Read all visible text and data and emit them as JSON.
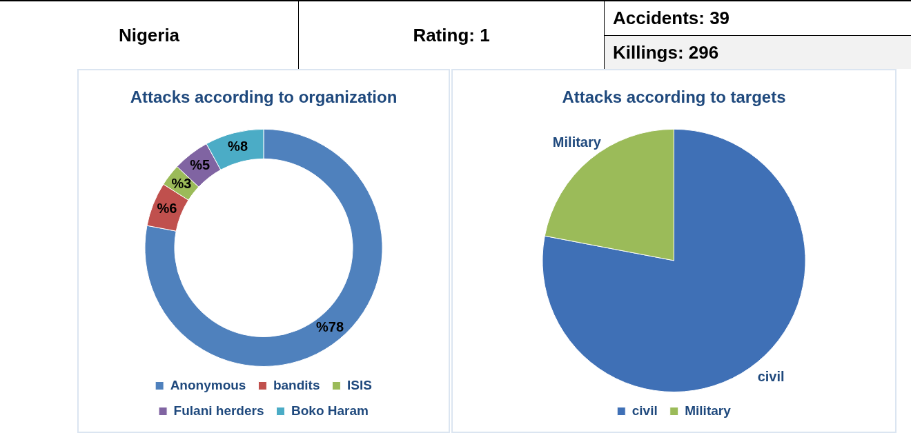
{
  "chart_data": [
    {
      "type": "other",
      "annotations": [
        "Nigeria",
        "Rating: 1",
        "Accidents: 39",
        "Killings: 296"
      ]
    },
    {
      "type": "donut",
      "title": "Attacks according to organization",
      "categories": [
        "Anonymous",
        "bandits",
        "ISIS",
        "Fulani herders",
        "Boko Haram"
      ],
      "values": [
        78,
        6,
        3,
        5,
        8
      ],
      "colors": [
        "#4f81bd",
        "#c0504d",
        "#9bbb59",
        "#8064a2",
        "#4bacc6"
      ],
      "value_labels": [
        "%78",
        "%6",
        "%3",
        "%5",
        "%8"
      ],
      "legend": "bottom"
    },
    {
      "type": "pie",
      "title": "Attacks according to targets",
      "categories": [
        "civil",
        "Military"
      ],
      "values": [
        78,
        22
      ],
      "colors": [
        "#3f70b6",
        "#9bbb59"
      ],
      "value_labels": [
        "civil",
        "Military"
      ],
      "legend": "bottom"
    }
  ]
}
